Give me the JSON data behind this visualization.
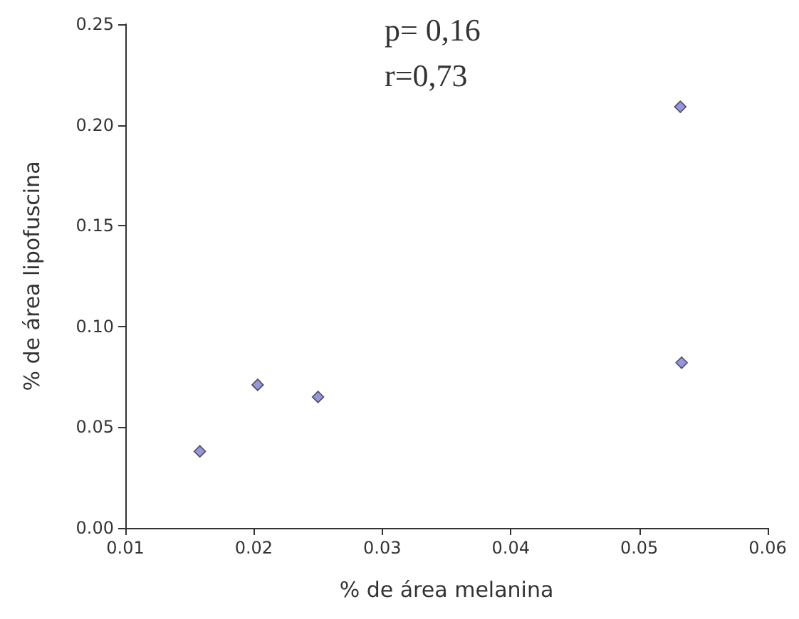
{
  "chart_data": {
    "type": "scatter",
    "xlabel": "% de área melanina",
    "ylabel": "% de área lipofuscina",
    "annotations": [
      "p= 0,16",
      "r=0,73"
    ],
    "series": [
      {
        "color": "#7b7bd8",
        "x": [
          0.0158,
          0.0203,
          0.025,
          0.0532,
          0.0533
        ],
        "values": [
          0.038,
          0.071,
          0.065,
          0.209,
          0.082
        ]
      }
    ],
    "xlim": [
      0.01,
      0.06
    ],
    "xticks": [
      0.01,
      0.02,
      0.03,
      0.04,
      0.05,
      0.06
    ],
    "ylim": [
      0,
      0.25
    ],
    "yticks": [
      {
        "value": 0,
        "label": "0.00"
      },
      0.05,
      {
        "value": 0.1,
        "label": "0.10"
      },
      0.15,
      {
        "value": 0.2,
        "label": "0.20"
      },
      0.25
    ],
    "marker": "diamond",
    "grid": false
  }
}
